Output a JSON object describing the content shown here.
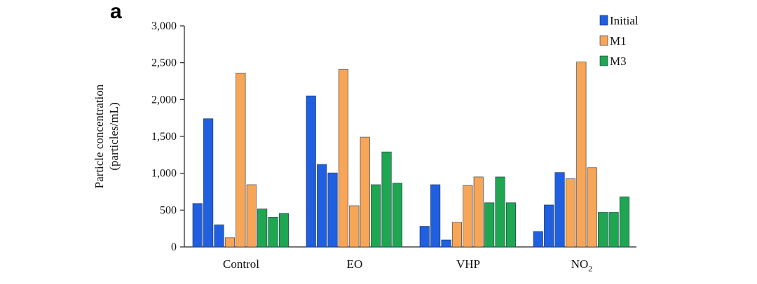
{
  "panel_label": "a",
  "chart_data": {
    "type": "bar",
    "title": "",
    "xlabel": "",
    "ylabel": "Particle concentration",
    "ylabel_unit": "(particles/mL)",
    "ylim": [
      0,
      3000
    ],
    "yticks": [
      0,
      500,
      1000,
      1500,
      2000,
      2500,
      3000
    ],
    "ytick_labels": [
      "0",
      "500",
      "1,000",
      "1,500",
      "2,000",
      "2,500",
      "3,000"
    ],
    "grid": false,
    "legend_position": "top-right",
    "categories": [
      {
        "label": "Control",
        "sub": ""
      },
      {
        "label": "EO",
        "sub": ""
      },
      {
        "label": "VHP",
        "sub": ""
      },
      {
        "label": "NO",
        "sub": "2"
      }
    ],
    "bars_per_series": 3,
    "series": [
      {
        "name": "Initial",
        "color": "#1f5fe0",
        "values": [
          [
            590,
            1740,
            300
          ],
          [
            2050,
            1120,
            1005
          ],
          [
            280,
            845,
            95
          ],
          [
            210,
            570,
            1010
          ]
        ]
      },
      {
        "name": "M1",
        "color": "#f7a556",
        "values": [
          [
            125,
            2360,
            845
          ],
          [
            2410,
            560,
            1490
          ],
          [
            335,
            835,
            950
          ],
          [
            925,
            2510,
            1075
          ]
        ]
      },
      {
        "name": "M3",
        "color": "#1fa650",
        "values": [
          [
            515,
            405,
            455
          ],
          [
            845,
            1290,
            865
          ],
          [
            600,
            950,
            600
          ],
          [
            470,
            470,
            680
          ]
        ]
      }
    ]
  }
}
